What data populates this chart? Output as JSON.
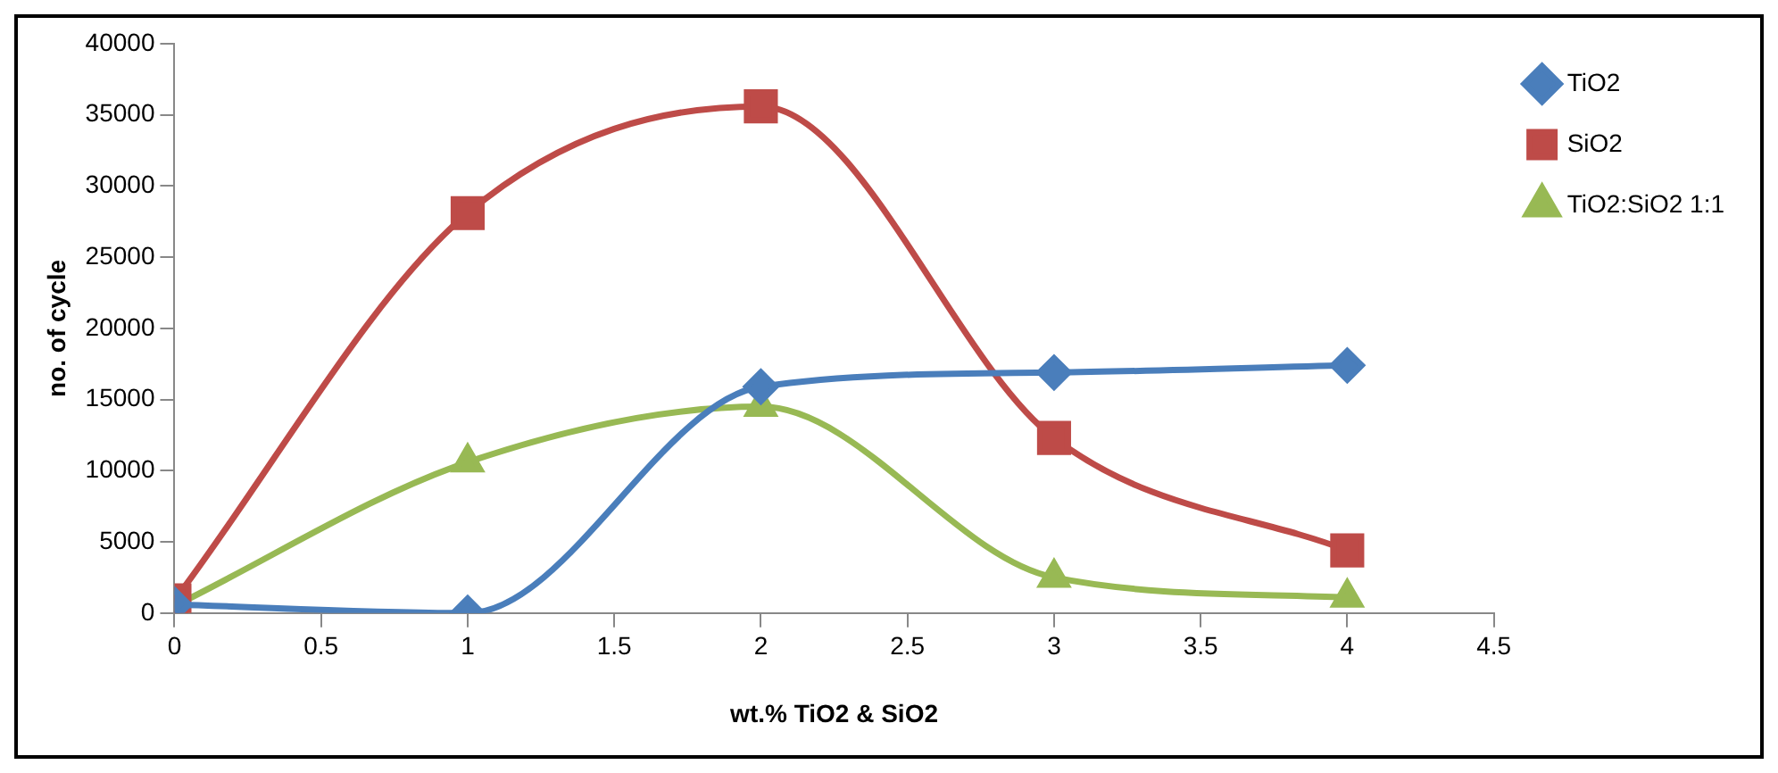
{
  "chart_data": {
    "type": "line",
    "xlabel": "wt.% TiO2 & SiO2",
    "ylabel": "no. of cycle",
    "x": [
      0,
      1,
      2,
      3,
      4
    ],
    "xlim": [
      0,
      4.5
    ],
    "xticks": [
      0,
      0.5,
      1,
      1.5,
      2,
      2.5,
      3,
      3.5,
      4,
      4.5
    ],
    "ylim": [
      0,
      40000
    ],
    "yticks": [
      0,
      5000,
      10000,
      15000,
      20000,
      25000,
      30000,
      35000,
      40000
    ],
    "grid": false,
    "legend": "top right",
    "series": [
      {
        "name": "TiO2",
        "color": "#4a7ebb",
        "marker": "diamond",
        "values": [
          600,
          0,
          15900,
          16900,
          17400
        ]
      },
      {
        "name": "SiO2",
        "color": "#be4b48",
        "marker": "square",
        "values": [
          900,
          28100,
          35600,
          12300,
          4400
        ]
      },
      {
        "name": "TiO2:SiO2 1:1",
        "color": "#98b954",
        "marker": "triangle",
        "values": [
          500,
          10600,
          14500,
          2500,
          1100
        ]
      }
    ]
  }
}
